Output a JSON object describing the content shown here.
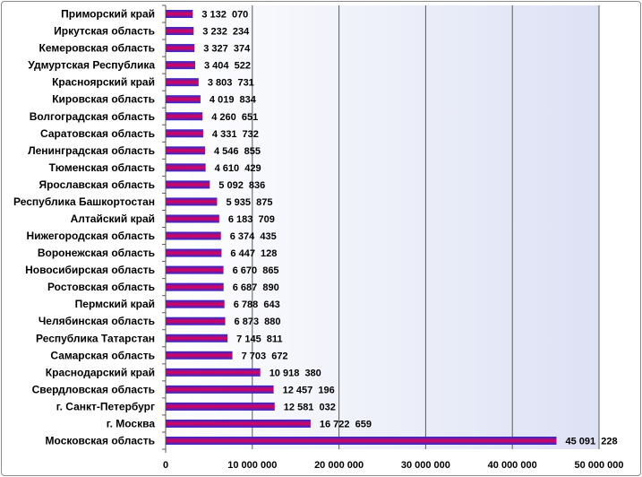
{
  "chart_data": {
    "type": "bar",
    "orientation": "horizontal",
    "categories": [
      "Приморский край",
      "Иркутская область",
      "Кемеровская область",
      "Удмуртская Республика",
      "Красноярский край",
      "Кировская область",
      "Волгоградская область",
      "Саратовская область",
      "Ленинградская область",
      "Тюменская область",
      "Ярославская область",
      "Республика Башкортостан",
      "Алтайский край",
      "Нижегородская область",
      "Воронежская область",
      "Новосибирская область",
      "Ростовская область",
      "Пермский край",
      "Челябинская область",
      "Республика Татарстан",
      "Самарская область",
      "Краснодарский край",
      "Свердловская область",
      "г. Санкт-Петербург",
      "г. Москва",
      "Московская область"
    ],
    "values": [
      3132070,
      3232234,
      3327374,
      3404522,
      3803731,
      4019834,
      4260651,
      4331732,
      4546855,
      4610429,
      5092836,
      5935875,
      6183709,
      6374435,
      6447128,
      6670865,
      6687890,
      6788643,
      6873880,
      7145811,
      7703672,
      10918380,
      12457196,
      12581032,
      16722659,
      45091228
    ],
    "value_labels": [
      "3 132  070",
      "3 232  234",
      "3 327  374",
      "3 404  522",
      "3 803  731",
      "4 019  834",
      "4 260  651",
      "4 331  732",
      "4 546  855",
      "4 610  429",
      "5 092  836",
      "5 935  875",
      "6 183  709",
      "6 374  435",
      "6 447  128",
      "6 670  865",
      "6 687  890",
      "6 788  643",
      "6 873  880",
      "7 145  811",
      "7 703  672",
      "10 918  380",
      "12 457  196",
      "12 581  032",
      "16 722  659",
      "45 091  228"
    ],
    "x_ticks": [
      0,
      10000000,
      20000000,
      30000000,
      40000000,
      50000000
    ],
    "x_tick_labels": [
      "0",
      "10 000 000",
      "20 000 000",
      "30 000 000",
      "40 000 000",
      "50 000 000"
    ],
    "xlim": [
      0,
      50000000
    ],
    "title": "",
    "xlabel": "",
    "ylabel": "",
    "grid": "vertical",
    "legend": "none",
    "colors": {
      "bar_top": "#2a2ad0",
      "bar_mid": "#e0005a",
      "bar_bottom": "#2a2ad0",
      "plot_bg_left": "#ffffff",
      "plot_bg_right": "#dde1f4",
      "grid": "#5a5a5a"
    }
  }
}
